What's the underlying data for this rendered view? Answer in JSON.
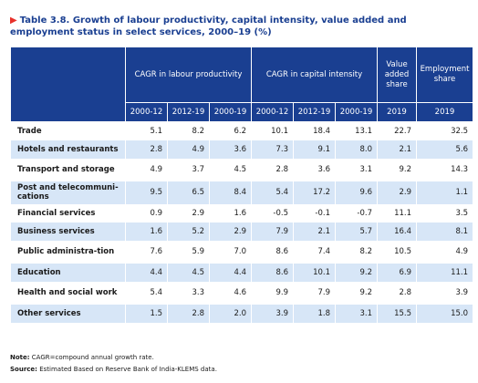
{
  "title": {
    "marker": "▶",
    "text": "Table 3.8. Growth of labour productivity, capital intensity, value added and employment status in select services, 2000–19 (%)"
  },
  "headers": {
    "group1": "CAGR in labour productivity",
    "group2": "CAGR in capital intensity",
    "value_added": "Value added share",
    "employment": "Employment share",
    "sub": [
      "2000-12",
      "2012-19",
      "2000-19",
      "2000-12",
      "2012-19",
      "2000-19",
      "2019",
      "2019"
    ]
  },
  "rows": [
    {
      "label": "Trade",
      "v": [
        "5.1",
        "8.2",
        "6.2",
        "10.1",
        "18.4",
        "13.1",
        "22.7",
        "32.5"
      ]
    },
    {
      "label": "Hotels and restaurants",
      "v": [
        "2.8",
        "4.9",
        "3.6",
        "7.3",
        "9.1",
        "8.0",
        "2.1",
        "5.6"
      ]
    },
    {
      "label": "Transport and storage",
      "v": [
        "4.9",
        "3.7",
        "4.5",
        "2.8",
        "3.6",
        "3.1",
        "9.2",
        "14.3"
      ]
    },
    {
      "label": "Post and telecommuni-cations",
      "v": [
        "9.5",
        "6.5",
        "8.4",
        "5.4",
        "17.2",
        "9.6",
        "2.9",
        "1.1"
      ]
    },
    {
      "label": "Financial services",
      "v": [
        "0.9",
        "2.9",
        "1.6",
        "-0.5",
        "-0.1",
        "-0.7",
        "11.1",
        "3.5"
      ]
    },
    {
      "label": "Business services",
      "v": [
        "1.6",
        "5.2",
        "2.9",
        "7.9",
        "2.1",
        "5.7",
        "16.4",
        "8.1"
      ]
    },
    {
      "label": "Public administra-tion",
      "v": [
        "7.6",
        "5.9",
        "7.0",
        "8.6",
        "7.4",
        "8.2",
        "10.5",
        "4.9"
      ]
    },
    {
      "label": "Education",
      "v": [
        "4.4",
        "4.5",
        "4.4",
        "8.6",
        "10.1",
        "9.2",
        "6.9",
        "11.1"
      ]
    },
    {
      "label": "Health and social work",
      "v": [
        "5.4",
        "3.3",
        "4.6",
        "9.9",
        "7.9",
        "9.2",
        "2.8",
        "3.9"
      ]
    },
    {
      "label": "Other services",
      "v": [
        "1.5",
        "2.8",
        "2.0",
        "3.9",
        "1.8",
        "3.1",
        "15.5",
        "15.0"
      ]
    }
  ],
  "note": {
    "label": "Note:",
    "text": " CAGR=compound annual growth rate."
  },
  "source": {
    "label": "Source:",
    "text": " Estimated Based on Reserve Bank of India-KLEMS data."
  }
}
